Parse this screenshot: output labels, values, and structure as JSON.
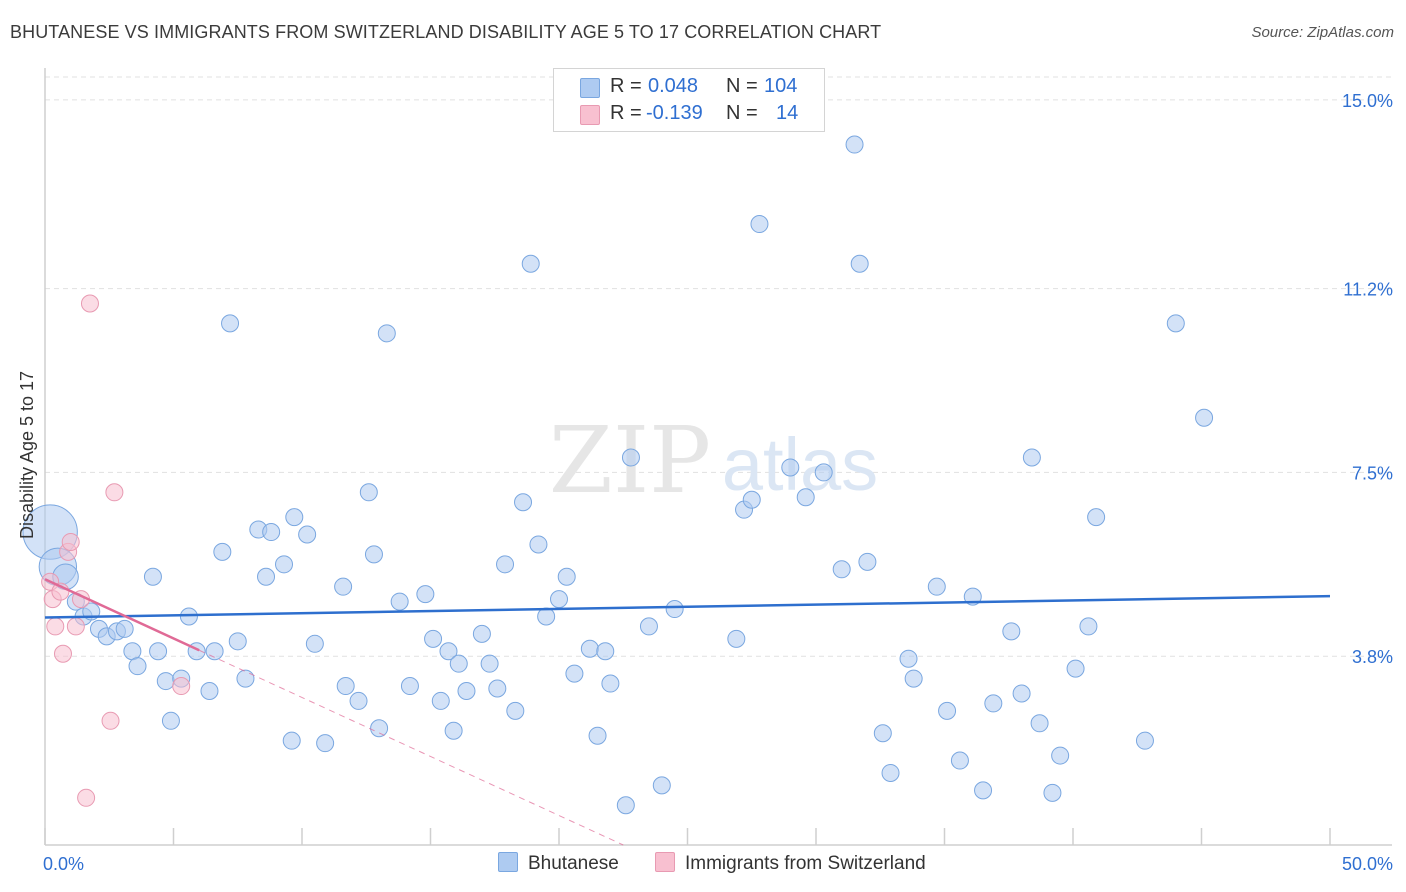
{
  "header": {
    "title": "BHUTANESE VS IMMIGRANTS FROM SWITZERLAND DISABILITY AGE 5 TO 17 CORRELATION CHART",
    "source": "Source: ZipAtlas.com"
  },
  "watermark": {
    "zip": "ZIP",
    "atlas": "atlas"
  },
  "legend": {
    "rows": [
      {
        "r_label": "R =",
        "r_value": "0.048",
        "n_label": "N =",
        "n_value": "104",
        "color": "#aecbf1"
      },
      {
        "r_label": "R =",
        "r_value": "-0.139",
        "n_label": "N =",
        "n_value": "14",
        "color": "#f8c0d0"
      }
    ]
  },
  "bottom_legend": [
    {
      "label": "Bhutanese",
      "color": "#aecbf1"
    },
    {
      "label": "Immigrants from Switzerland",
      "color": "#f8c0d0"
    }
  ],
  "chart_data": {
    "type": "scatter",
    "title": "BHUTANESE VS IMMIGRANTS FROM SWITZERLAND DISABILITY AGE 5 TO 17 CORRELATION CHART",
    "xlabel": "",
    "ylabel": "Disability Age 5 to 17",
    "xlim": [
      0,
      50
    ],
    "ylim": [
      0,
      15.5
    ],
    "x_tick_labels": [
      "0.0%",
      "50.0%"
    ],
    "y_ticks": [
      3.8,
      7.5,
      11.2,
      15.0
    ],
    "y_tick_labels": [
      "3.8%",
      "7.5%",
      "11.2%",
      "15.0%"
    ],
    "grid": true,
    "series": [
      {
        "name": "Bhutanese",
        "color": "#aecbf1",
        "stroke": "#7aa7e0",
        "trend": {
          "x": [
            0,
            50
          ],
          "y": [
            4.58,
            5.01
          ],
          "color": "#2e6fce"
        },
        "points": [
          [
            0.2,
            6.3,
            3.2
          ],
          [
            0.5,
            5.6,
            2.2
          ],
          [
            0.8,
            5.4,
            1.5
          ],
          [
            1.2,
            4.9,
            1
          ],
          [
            1.5,
            4.6,
            1
          ],
          [
            1.8,
            4.7,
            1
          ],
          [
            2.1,
            4.35,
            1
          ],
          [
            2.4,
            4.2,
            1
          ],
          [
            2.8,
            4.3,
            1
          ],
          [
            3.1,
            4.35,
            1
          ],
          [
            3.4,
            3.9,
            1
          ],
          [
            3.6,
            3.6,
            1
          ],
          [
            4.2,
            5.4,
            1
          ],
          [
            4.4,
            3.9,
            1
          ],
          [
            4.7,
            3.3,
            1
          ],
          [
            4.9,
            2.5,
            1
          ],
          [
            5.3,
            3.35,
            1
          ],
          [
            5.6,
            4.6,
            1
          ],
          [
            5.9,
            3.9,
            1
          ],
          [
            6.4,
            3.1,
            1
          ],
          [
            6.6,
            3.9,
            1
          ],
          [
            6.9,
            5.9,
            1
          ],
          [
            7.2,
            10.5,
            1
          ],
          [
            7.5,
            4.1,
            1
          ],
          [
            7.8,
            3.35,
            1
          ],
          [
            8.3,
            6.35,
            1
          ],
          [
            8.6,
            5.4,
            1
          ],
          [
            8.8,
            6.3,
            1
          ],
          [
            9.3,
            5.65,
            1
          ],
          [
            9.6,
            2.1,
            1
          ],
          [
            9.7,
            6.6,
            1
          ],
          [
            10.2,
            6.25,
            1
          ],
          [
            10.5,
            4.05,
            1
          ],
          [
            10.9,
            2.05,
            1
          ],
          [
            11.6,
            5.2,
            1
          ],
          [
            11.7,
            3.2,
            1
          ],
          [
            12.2,
            2.9,
            1
          ],
          [
            12.6,
            7.1,
            1
          ],
          [
            12.8,
            5.85,
            1
          ],
          [
            13.0,
            2.35,
            1
          ],
          [
            13.3,
            10.3,
            1
          ],
          [
            13.8,
            4.9,
            1
          ],
          [
            14.2,
            3.2,
            1
          ],
          [
            14.8,
            5.05,
            1
          ],
          [
            15.1,
            4.15,
            1
          ],
          [
            15.4,
            2.9,
            1
          ],
          [
            15.7,
            3.9,
            1
          ],
          [
            15.9,
            2.3,
            1
          ],
          [
            16.1,
            3.65,
            1
          ],
          [
            16.4,
            3.1,
            1
          ],
          [
            17.0,
            4.25,
            1
          ],
          [
            17.3,
            3.65,
            1
          ],
          [
            17.6,
            3.15,
            1
          ],
          [
            17.9,
            5.65,
            1
          ],
          [
            18.3,
            2.7,
            1
          ],
          [
            18.6,
            6.9,
            1
          ],
          [
            18.9,
            11.7,
            1
          ],
          [
            19.2,
            6.05,
            1
          ],
          [
            19.5,
            4.6,
            1
          ],
          [
            20.0,
            4.95,
            1
          ],
          [
            20.3,
            5.4,
            1
          ],
          [
            20.6,
            3.45,
            1
          ],
          [
            21.2,
            3.95,
            1
          ],
          [
            21.5,
            2.2,
            1
          ],
          [
            21.8,
            3.9,
            1
          ],
          [
            22.0,
            3.25,
            1
          ],
          [
            22.6,
            0.8,
            1
          ],
          [
            22.8,
            7.8,
            1
          ],
          [
            23.5,
            4.4,
            1
          ],
          [
            24.0,
            1.2,
            1
          ],
          [
            24.5,
            4.75,
            1
          ],
          [
            26.9,
            4.15,
            1
          ],
          [
            27.2,
            6.75,
            1
          ],
          [
            27.5,
            6.95,
            1
          ],
          [
            27.8,
            12.5,
            1
          ],
          [
            29.0,
            7.6,
            1
          ],
          [
            29.6,
            7.0,
            1
          ],
          [
            30.3,
            7.5,
            1
          ],
          [
            31.0,
            5.55,
            1
          ],
          [
            31.5,
            14.1,
            1
          ],
          [
            31.7,
            11.7,
            1
          ],
          [
            32.0,
            5.7,
            1
          ],
          [
            32.6,
            2.25,
            1
          ],
          [
            32.9,
            1.45,
            1
          ],
          [
            33.6,
            3.75,
            1
          ],
          [
            33.8,
            3.35,
            1
          ],
          [
            34.7,
            5.2,
            1
          ],
          [
            35.1,
            2.7,
            1
          ],
          [
            35.6,
            1.7,
            1
          ],
          [
            36.1,
            5.0,
            1
          ],
          [
            36.5,
            1.1,
            1
          ],
          [
            36.9,
            2.85,
            1
          ],
          [
            37.6,
            4.3,
            1
          ],
          [
            38.0,
            3.05,
            1
          ],
          [
            38.4,
            7.8,
            1
          ],
          [
            38.7,
            2.45,
            1
          ],
          [
            39.2,
            1.05,
            1
          ],
          [
            39.5,
            1.8,
            1
          ],
          [
            40.1,
            3.55,
            1
          ],
          [
            40.6,
            4.4,
            1
          ],
          [
            40.9,
            6.6,
            1
          ],
          [
            42.8,
            2.1,
            1
          ],
          [
            44.0,
            10.5,
            1
          ],
          [
            45.1,
            8.6,
            1
          ]
        ]
      },
      {
        "name": "Immigrants from Switzerland",
        "color": "#f8c0d0",
        "stroke": "#e89ab2",
        "trend": {
          "x": [
            0,
            6.0
          ],
          "y": [
            5.35,
            3.92
          ],
          "color": "#e06a96",
          "dash_to": [
            22.5,
            0
          ]
        },
        "points": [
          [
            0.2,
            5.3,
            1
          ],
          [
            0.3,
            4.95,
            1
          ],
          [
            0.4,
            4.4,
            1
          ],
          [
            0.6,
            5.1,
            1
          ],
          [
            0.7,
            3.85,
            1
          ],
          [
            0.9,
            5.9,
            1
          ],
          [
            1.0,
            6.1,
            1
          ],
          [
            1.2,
            4.4,
            1
          ],
          [
            1.4,
            4.95,
            1
          ],
          [
            1.6,
            0.95,
            1
          ],
          [
            1.75,
            10.9,
            1
          ],
          [
            2.55,
            2.5,
            1
          ],
          [
            2.7,
            7.1,
            1
          ],
          [
            5.3,
            3.2,
            1
          ]
        ]
      }
    ]
  }
}
